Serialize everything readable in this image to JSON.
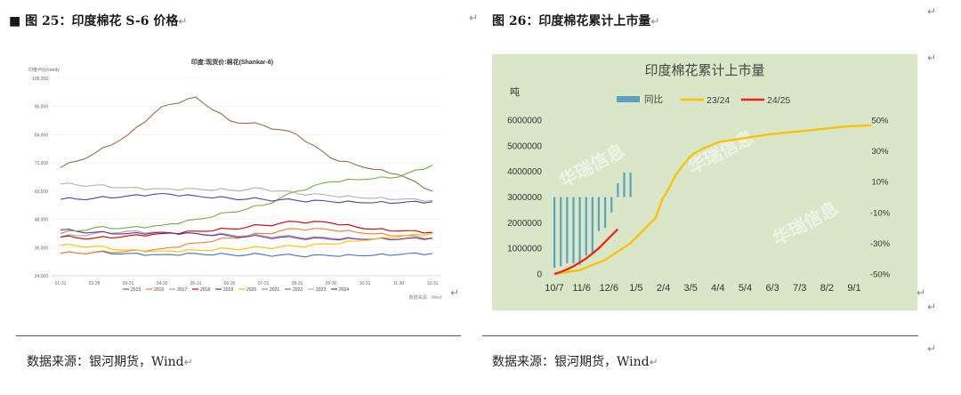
{
  "left": {
    "figure_title": "图 25：印度棉花 S-6 价格",
    "source": "数据来源：银河期货，Wind",
    "chart_data": {
      "type": "line",
      "title": "印度:现货价:棉花(Shankar-6)",
      "ylabel": "印度卢比/candy",
      "x_ticks": [
        "01-31",
        "02-28",
        "03-31",
        "04-30",
        "05-31",
        "06-30",
        "07-31",
        "08-31",
        "09-30",
        "10-31",
        "11-30",
        "12-31"
      ],
      "y_ticks": [
        "24,000",
        "36,000",
        "48,000",
        "60,000",
        "72,000",
        "84,000",
        "96,000",
        "108,000"
      ],
      "ylim": [
        24000,
        108000
      ],
      "source_note": "数据来源：Wind",
      "series": [
        {
          "name": "2015",
          "color": "#4472c4",
          "values": [
            33500,
            34000,
            33500,
            33000,
            33500,
            33000,
            33000,
            32500,
            32500,
            32500,
            33000,
            33500
          ]
        },
        {
          "name": "2016",
          "color": "#ed7d31",
          "values": [
            33500,
            34000,
            34500,
            35500,
            38000,
            40000,
            42000,
            44000,
            43500,
            42000,
            41000,
            40000
          ]
        },
        {
          "name": "2017",
          "color": "#a5a5a5",
          "values": [
            40500,
            42000,
            43000,
            42500,
            42000,
            41500,
            41000,
            40500,
            40000,
            39500,
            39500,
            40000
          ]
        },
        {
          "name": "2018",
          "color": "#c00000",
          "values": [
            40500,
            40000,
            41000,
            42000,
            43000,
            44000,
            45500,
            47000,
            46500,
            44000,
            43000,
            42500
          ]
        },
        {
          "name": "2019",
          "color": "#7030a0",
          "values": [
            43500,
            42500,
            42000,
            42500,
            42000,
            41000,
            40500,
            40000,
            39500,
            39500,
            39500,
            40000
          ]
        },
        {
          "name": "2020",
          "color": "#ffc000",
          "values": [
            37000,
            36500,
            35000,
            34500,
            35000,
            35500,
            36000,
            36500,
            37500,
            39000,
            40500,
            42000
          ]
        },
        {
          "name": "2021",
          "color": "#70ad47",
          "values": [
            42000,
            44500,
            44500,
            45500,
            48000,
            51000,
            54000,
            60000,
            64000,
            65000,
            66000,
            71000
          ]
        },
        {
          "name": "2022",
          "color": "#9c6b4e",
          "values": [
            70000,
            76000,
            84000,
            96000,
            100000,
            90000,
            88000,
            84000,
            74000,
            70000,
            67000,
            60000
          ]
        },
        {
          "name": "2023",
          "color": "#b0b0b0",
          "values": [
            63000,
            62500,
            61500,
            61000,
            61000,
            60500,
            61000,
            59000,
            58000,
            57000,
            56500,
            56000
          ]
        },
        {
          "name": "2024",
          "color": "#5b3f9a",
          "values": [
            56500,
            57000,
            58000,
            59000,
            58000,
            57000,
            56500,
            56000,
            55500,
            55000,
            55000,
            55500
          ]
        }
      ],
      "legend": [
        "2015",
        "2016",
        "2017",
        "2018",
        "2019",
        "2020",
        "2021",
        "2022",
        "2023",
        "2024"
      ]
    }
  },
  "right": {
    "figure_title": "图 26：印度棉花累计上市量",
    "source": "数据来源：银河期货，Wind",
    "chart_data": {
      "type": "bar+line",
      "title": "印度棉花累计上市量",
      "ylabel": "吨",
      "legend": [
        "同比",
        "23/24",
        "24/25"
      ],
      "x_ticks": [
        "10/7",
        "11/6",
        "12/6",
        "1/5",
        "2/4",
        "3/5",
        "4/4",
        "5/4",
        "6/3",
        "7/3",
        "8/2",
        "9/1"
      ],
      "y_left_ticks": [
        "0",
        "1000000",
        "2000000",
        "3000000",
        "4000000",
        "5000000",
        "6000000"
      ],
      "y_left_range": [
        0,
        6000000
      ],
      "y_right_ticks": [
        "50%",
        "30%",
        "10%",
        "-10%",
        "-30%",
        "-50%"
      ],
      "y_right_range": [
        -50,
        50
      ],
      "series_2324": {
        "name": "23/24",
        "color": "#ffc000",
        "weeks": [
          0,
          4,
          8,
          12,
          16,
          17,
          18,
          19,
          20,
          21,
          22,
          24,
          26,
          30,
          34,
          38,
          42,
          46,
          50
        ],
        "values": [
          0,
          150000,
          550000,
          1200000,
          2200000,
          2900000,
          3300000,
          3800000,
          4150000,
          4450000,
          4700000,
          4950000,
          5150000,
          5300000,
          5450000,
          5550000,
          5650000,
          5750000,
          5800000
        ]
      },
      "series_2425": {
        "name": "24/25",
        "color": "#e8271a",
        "weeks": [
          0,
          1,
          2,
          3,
          4,
          5,
          6,
          7,
          8,
          9,
          10
        ],
        "values": [
          0,
          80000,
          180000,
          300000,
          450000,
          600000,
          800000,
          1000000,
          1250000,
          1500000,
          1750000
        ]
      },
      "series_yoy": {
        "name": "同比",
        "color": "#5aa2be",
        "weeks": [
          0,
          1,
          2,
          3,
          4,
          5,
          6,
          7,
          8,
          9,
          10,
          11,
          12
        ],
        "values": [
          -46,
          -45,
          -43,
          -43,
          -44,
          -38,
          -36,
          -22,
          -20,
          -10,
          9,
          16,
          16
        ]
      }
    }
  }
}
